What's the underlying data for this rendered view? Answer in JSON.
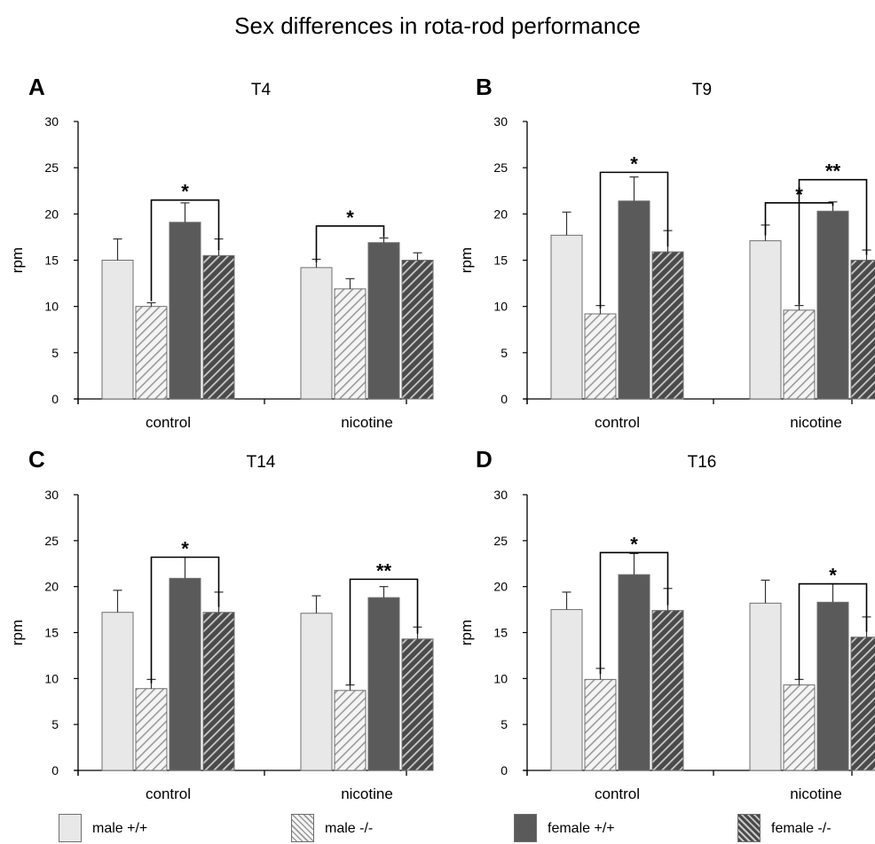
{
  "figure_title": "Sex differences in rota-rod performance",
  "colors": {
    "male_wt": "#e8e8e8",
    "male_ko_bg": "#f4f4f4",
    "male_ko_stripe": "#9a9a9a",
    "female_wt": "#5a5a5a",
    "female_ko_bg": "#4a4a4a",
    "female_ko_stripe": "#c8c8c8",
    "edge": "#6f6f6f"
  },
  "legend": [
    {
      "key": "male_wt",
      "label": "male +/+"
    },
    {
      "key": "male_ko",
      "label": "male -/-"
    },
    {
      "key": "female_wt",
      "label": "female +/+"
    },
    {
      "key": "female_ko",
      "label": "female -/-"
    }
  ],
  "chart_data": [
    {
      "type": "bar",
      "panel": "A",
      "title": "T4",
      "ylabel": "rpm",
      "xlabel": "",
      "ylim": [
        0,
        30
      ],
      "yticks": [
        0,
        5,
        10,
        15,
        20,
        25,
        30
      ],
      "categories": [
        "control",
        "nicotine"
      ],
      "series": [
        {
          "name": "male +/+",
          "values": [
            15.0,
            14.2
          ],
          "errors": [
            2.3,
            0.9
          ]
        },
        {
          "name": "male -/-",
          "values": [
            10.0,
            11.9
          ],
          "errors": [
            0.4,
            1.1
          ]
        },
        {
          "name": "female +/+",
          "values": [
            19.1,
            16.9
          ],
          "errors": [
            2.1,
            0.5
          ]
        },
        {
          "name": "female -/-",
          "values": [
            15.5,
            15.0
          ],
          "errors": [
            1.8,
            0.8
          ]
        }
      ],
      "significance": [
        {
          "group": 0,
          "from": 1,
          "to": 3,
          "label": "*",
          "y": 21.5
        },
        {
          "group": 1,
          "from": 0,
          "to": 2,
          "label": "*",
          "y": 18.7
        }
      ]
    },
    {
      "type": "bar",
      "panel": "B",
      "title": "T9",
      "ylabel": "rpm",
      "xlabel": "",
      "ylim": [
        0,
        30
      ],
      "yticks": [
        0,
        5,
        10,
        15,
        20,
        25,
        30
      ],
      "categories": [
        "control",
        "nicotine"
      ],
      "series": [
        {
          "name": "male +/+",
          "values": [
            17.7,
            17.1
          ],
          "errors": [
            2.5,
            1.7
          ]
        },
        {
          "name": "male -/-",
          "values": [
            9.2,
            9.6
          ],
          "errors": [
            0.9,
            0.5
          ]
        },
        {
          "name": "female +/+",
          "values": [
            21.4,
            20.3
          ],
          "errors": [
            2.6,
            1.0
          ]
        },
        {
          "name": "female -/-",
          "values": [
            15.9,
            15.0
          ],
          "errors": [
            2.3,
            1.1
          ]
        }
      ],
      "significance": [
        {
          "group": 0,
          "from": 1,
          "to": 3,
          "label": "*",
          "y": 24.5
        },
        {
          "group": 1,
          "from": 0,
          "to": 2,
          "label": "*",
          "y": 21.2
        },
        {
          "group": 1,
          "from": 1,
          "to": 3,
          "label": "**",
          "y": 23.7
        }
      ]
    },
    {
      "type": "bar",
      "panel": "C",
      "title": "T14",
      "ylabel": "rpm",
      "xlabel": "",
      "ylim": [
        0,
        30
      ],
      "yticks": [
        0,
        5,
        10,
        15,
        20,
        25,
        30
      ],
      "categories": [
        "control",
        "nicotine"
      ],
      "series": [
        {
          "name": "male +/+",
          "values": [
            17.2,
            17.1
          ],
          "errors": [
            2.4,
            1.9
          ]
        },
        {
          "name": "male -/-",
          "values": [
            8.9,
            8.7
          ],
          "errors": [
            1.0,
            0.6
          ]
        },
        {
          "name": "female +/+",
          "values": [
            20.9,
            18.8
          ],
          "errors": [
            2.3,
            1.2
          ]
        },
        {
          "name": "female -/-",
          "values": [
            17.2,
            14.3
          ],
          "errors": [
            2.2,
            1.3
          ]
        }
      ],
      "significance": [
        {
          "group": 0,
          "from": 1,
          "to": 3,
          "label": "*",
          "y": 23.2
        },
        {
          "group": 1,
          "from": 1,
          "to": 3,
          "label": "**",
          "y": 20.8
        }
      ]
    },
    {
      "type": "bar",
      "panel": "D",
      "title": "T16",
      "ylabel": "rpm",
      "xlabel": "",
      "ylim": [
        0,
        30
      ],
      "yticks": [
        0,
        5,
        10,
        15,
        20,
        25,
        30
      ],
      "categories": [
        "control",
        "nicotine"
      ],
      "series": [
        {
          "name": "male +/+",
          "values": [
            17.5,
            18.2
          ],
          "errors": [
            1.9,
            2.5
          ]
        },
        {
          "name": "male -/-",
          "values": [
            9.9,
            9.3
          ],
          "errors": [
            1.2,
            0.6
          ]
        },
        {
          "name": "female +/+",
          "values": [
            21.3,
            18.3
          ],
          "errors": [
            2.3,
            2.0
          ]
        },
        {
          "name": "female -/-",
          "values": [
            17.4,
            14.5
          ],
          "errors": [
            2.4,
            2.2
          ]
        }
      ],
      "significance": [
        {
          "group": 0,
          "from": 1,
          "to": 3,
          "label": "*",
          "y": 23.7
        },
        {
          "group": 1,
          "from": 1,
          "to": 3,
          "label": "*",
          "y": 20.3
        }
      ]
    }
  ]
}
